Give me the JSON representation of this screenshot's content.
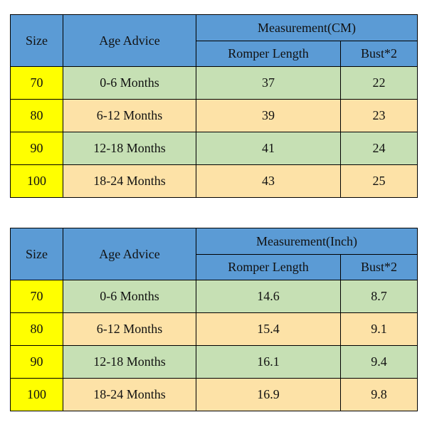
{
  "tables": [
    {
      "headers": {
        "size": "Size",
        "age": "Age Advice",
        "group": "Measurement(CM)",
        "length": "Romper Length",
        "bust": "Bust*2"
      },
      "rows": [
        {
          "size": "70",
          "age": "0-6 Months",
          "length": "37",
          "bust": "22"
        },
        {
          "size": "80",
          "age": "6-12 Months",
          "length": "39",
          "bust": "23"
        },
        {
          "size": "90",
          "age": "12-18 Months",
          "length": "41",
          "bust": "24"
        },
        {
          "size": "100",
          "age": "18-24 Months",
          "length": "43",
          "bust": "25"
        }
      ]
    },
    {
      "headers": {
        "size": "Size",
        "age": "Age Advice",
        "group": "Measurement(Inch)",
        "length": "Romper Length",
        "bust": "Bust*2"
      },
      "rows": [
        {
          "size": "70",
          "age": "0-6 Months",
          "length": "14.6",
          "bust": "8.7"
        },
        {
          "size": "80",
          "age": "6-12 Months",
          "length": "15.4",
          "bust": "9.1"
        },
        {
          "size": "90",
          "age": "12-18 Months",
          "length": "16.1",
          "bust": "9.4"
        },
        {
          "size": "100",
          "age": "18-24 Months",
          "length": "16.9",
          "bust": "9.8"
        }
      ]
    }
  ],
  "colors": {
    "header_blue": "#5b9bd5",
    "size_yellow": "#ffff00",
    "row_green": "#c6e0b4",
    "row_tan": "#fde2a7",
    "border": "#000000"
  }
}
